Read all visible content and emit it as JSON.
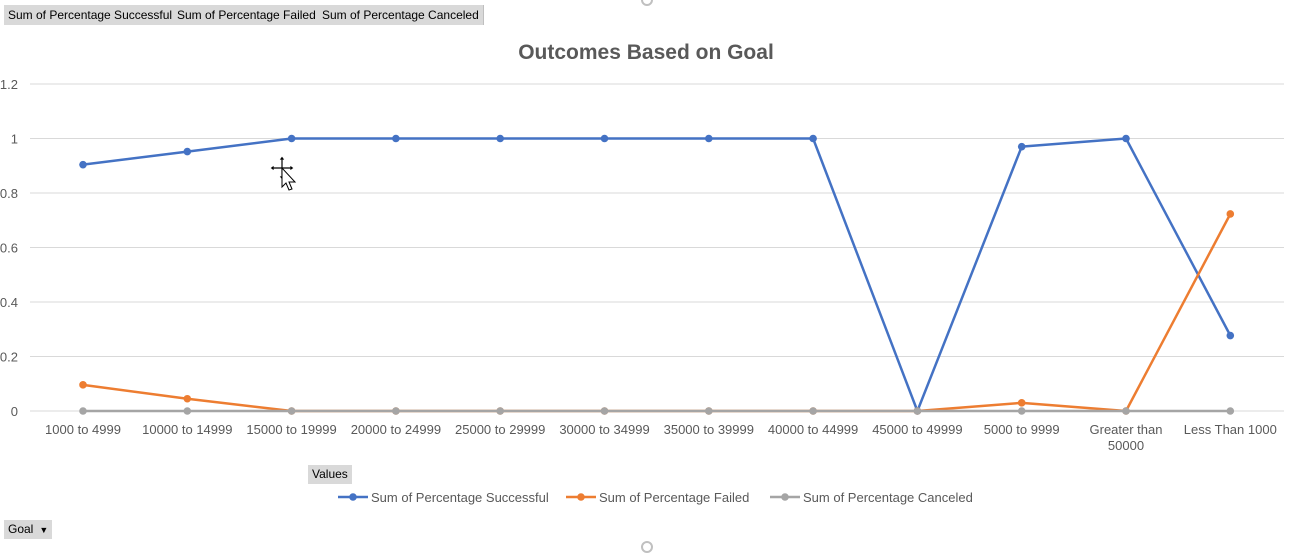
{
  "field_buttons": {
    "series_fields": [
      "Sum of Percentage Successful",
      "Sum of Percentage Failed",
      "Sum of Percentage Canceled"
    ],
    "values_label": "Values",
    "axis_field": "Goal"
  },
  "chart_data": {
    "type": "line",
    "title": "Outcomes Based on Goal",
    "xlabel": "",
    "ylabel": "",
    "ylim": [
      0,
      1.2
    ],
    "yticks": [
      "0",
      "0.2",
      "0.4",
      "0.6",
      "0.8",
      "1",
      "1.2"
    ],
    "grid": true,
    "legend_position": "bottom",
    "categories": [
      "1000 to 4999",
      "10000 to 14999",
      "15000 to 19999",
      "20000 to 24999",
      "25000 to 29999",
      "30000 to 34999",
      "35000 to 39999",
      "40000 to 44999",
      "45000 to 49999",
      "5000 to 9999",
      "Greater than 50000",
      "Less Than 1000"
    ],
    "series": [
      {
        "name": "Sum of Percentage Successful",
        "color": "#4472c4",
        "values": [
          0.904,
          0.952,
          1,
          1,
          1,
          1,
          1,
          1,
          0,
          0.97,
          1,
          0.277
        ]
      },
      {
        "name": "Sum of Percentage Failed",
        "color": "#ed7d31",
        "values": [
          0.096,
          0.045,
          0,
          0,
          0,
          0,
          0,
          0,
          0,
          0.03,
          0,
          0.723
        ]
      },
      {
        "name": "Sum of Percentage Canceled",
        "color": "#a5a5a5",
        "values": [
          0,
          0,
          0,
          0,
          0,
          0,
          0,
          0,
          0,
          0,
          0,
          0
        ]
      }
    ]
  }
}
